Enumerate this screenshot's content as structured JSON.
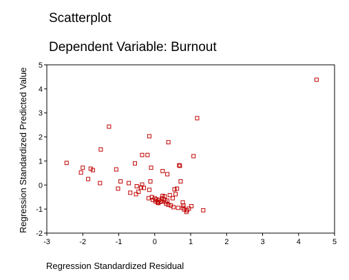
{
  "chart_data": {
    "type": "scatter",
    "title": "Scatterplot",
    "subtitle": "Dependent Variable: Burnout",
    "xlabel": "Regression Standardized Residual",
    "ylabel": "Regression Standardized Predicted Value",
    "xlim": [
      -3,
      5
    ],
    "ylim": [
      -2,
      5
    ],
    "xticks": [
      -3,
      -2,
      -1,
      0,
      1,
      2,
      3,
      4,
      5
    ],
    "yticks": [
      -2,
      -1,
      0,
      1,
      2,
      3,
      4,
      5
    ],
    "grid": false,
    "marker_color": "#c00000",
    "points": [
      [
        -2.45,
        0.92
      ],
      [
        -2.05,
        0.52
      ],
      [
        -2.0,
        0.72
      ],
      [
        -1.85,
        0.25
      ],
      [
        -1.78,
        0.68
      ],
      [
        -1.72,
        0.62
      ],
      [
        -1.52,
        0.08
      ],
      [
        -1.5,
        1.48
      ],
      [
        -1.27,
        2.43
      ],
      [
        -1.07,
        0.65
      ],
      [
        -1.02,
        -0.15
      ],
      [
        -0.95,
        0.15
      ],
      [
        -0.72,
        0.08
      ],
      [
        -0.68,
        -0.32
      ],
      [
        -0.55,
        0.9
      ],
      [
        -0.52,
        -0.38
      ],
      [
        -0.5,
        -0.05
      ],
      [
        -0.45,
        -0.28
      ],
      [
        -0.38,
        -0.1
      ],
      [
        -0.35,
        1.25
      ],
      [
        -0.35,
        0.02
      ],
      [
        -0.3,
        -0.12
      ],
      [
        -0.2,
        1.25
      ],
      [
        -0.17,
        -0.55
      ],
      [
        -0.15,
        2.03
      ],
      [
        -0.15,
        -0.2
      ],
      [
        -0.12,
        0.15
      ],
      [
        -0.1,
        0.72
      ],
      [
        -0.08,
        -0.5
      ],
      [
        -0.05,
        -0.62
      ],
      [
        0.0,
        -0.55
      ],
      [
        0.02,
        -0.68
      ],
      [
        0.05,
        -0.6
      ],
      [
        0.08,
        -0.72
      ],
      [
        0.1,
        -0.75
      ],
      [
        0.12,
        -0.62
      ],
      [
        0.15,
        -0.7
      ],
      [
        0.18,
        -0.68
      ],
      [
        0.2,
        -0.55
      ],
      [
        0.22,
        -0.45
      ],
      [
        0.22,
        0.58
      ],
      [
        0.25,
        -0.6
      ],
      [
        0.28,
        -0.48
      ],
      [
        0.3,
        -0.7
      ],
      [
        0.32,
        -0.78
      ],
      [
        0.35,
        -0.65
      ],
      [
        0.35,
        0.45
      ],
      [
        0.38,
        -0.82
      ],
      [
        0.38,
        1.78
      ],
      [
        0.42,
        -0.42
      ],
      [
        0.45,
        -0.85
      ],
      [
        0.5,
        -0.55
      ],
      [
        0.52,
        -0.92
      ],
      [
        0.55,
        -0.18
      ],
      [
        0.58,
        -0.38
      ],
      [
        0.62,
        -0.15
      ],
      [
        0.65,
        -0.95
      ],
      [
        0.68,
        0.82
      ],
      [
        0.7,
        0.8
      ],
      [
        0.72,
        0.15
      ],
      [
        0.78,
        -0.95
      ],
      [
        0.78,
        -0.72
      ],
      [
        0.8,
        -0.85
      ],
      [
        0.82,
        -1.02
      ],
      [
        0.88,
        -1.12
      ],
      [
        0.9,
        -1.05
      ],
      [
        0.95,
        -0.98
      ],
      [
        1.02,
        -0.88
      ],
      [
        1.08,
        1.2
      ],
      [
        1.18,
        2.78
      ],
      [
        1.35,
        -1.05
      ],
      [
        4.5,
        4.38
      ]
    ]
  }
}
